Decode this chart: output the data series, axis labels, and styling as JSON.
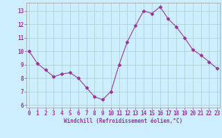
{
  "x": [
    0,
    1,
    2,
    3,
    4,
    5,
    6,
    7,
    8,
    9,
    10,
    11,
    12,
    13,
    14,
    15,
    16,
    17,
    18,
    19,
    20,
    21,
    22,
    23
  ],
  "y": [
    10.0,
    9.1,
    8.6,
    8.1,
    8.3,
    8.4,
    8.0,
    7.3,
    6.6,
    6.4,
    7.0,
    9.0,
    10.7,
    11.9,
    13.0,
    12.8,
    13.3,
    12.4,
    11.8,
    11.0,
    10.1,
    9.7,
    9.2,
    8.7
  ],
  "line_color": "#993399",
  "marker": "D",
  "marker_size": 2.5,
  "bg_color": "#cceeff",
  "grid_color": "#aacccc",
  "xlabel": "Windchill (Refroidissement éolien,°C)",
  "xlabel_color": "#993399",
  "tick_color": "#993399",
  "ylim": [
    5.8,
    13.6
  ],
  "yticks": [
    6,
    7,
    8,
    9,
    10,
    11,
    12,
    13
  ],
  "xticks": [
    0,
    1,
    2,
    3,
    4,
    5,
    6,
    7,
    8,
    9,
    10,
    11,
    12,
    13,
    14,
    15,
    16,
    17,
    18,
    19,
    20,
    21,
    22,
    23
  ]
}
